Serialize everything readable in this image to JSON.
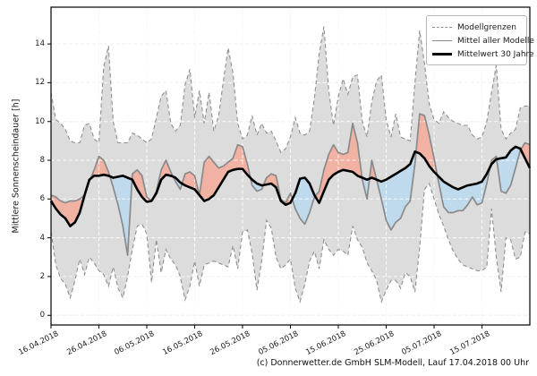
{
  "caption": "(c) Donnerwetter.de GmbH SLM-Modell, Lauf 17.04.2018 00 Uhr",
  "legend": {
    "items": [
      {
        "label": "Modellgrenzen",
        "style": "dashed-gray"
      },
      {
        "label": "Mittel aller Modelle",
        "style": "solid-gray"
      },
      {
        "label": "Mittelwert 30 Jahre",
        "style": "solid-black-thick"
      }
    ]
  },
  "colors": {
    "band_fill": "#dcdcdc",
    "band_border": "#8f8f8f",
    "above_normal_fill": "#f1b2a3",
    "below_normal_fill": "#bfdaec",
    "model_mean_line": "#8a8a8a",
    "climate_mean_line": "#000000",
    "grid_under": "#cccccc",
    "grid_over": "#ffffff",
    "axis": "#000000",
    "text": "#1a1a1a"
  },
  "chart_data": {
    "type": "area",
    "title": "",
    "xlabel": "",
    "ylabel": "Mittlere Sonnenscheindauer [h]",
    "grid": true,
    "legend_position": "top-right",
    "ylim": [
      -0.5,
      15.9
    ],
    "yticks": [
      0,
      2,
      4,
      6,
      8,
      10,
      12,
      14
    ],
    "x_unit": "days since 16.04.2018",
    "xlim_days": [
      0,
      100
    ],
    "x_tick_days": [
      0,
      10,
      20,
      30,
      40,
      50,
      60,
      70,
      80,
      90
    ],
    "x_tick_labels": [
      "16.04.2018",
      "26.04.2018",
      "06.05.2018",
      "16.05.2018",
      "26.05.2018",
      "05.06.2018",
      "15.06.2018",
      "25.06.2018",
      "05.07.2018",
      "15.07.2018"
    ],
    "series": [
      {
        "name": "Modellgrenzen (Maximum)",
        "role": "model_max",
        "values": [
          11.5,
          10.1,
          9.9,
          9.6,
          9.0,
          8.9,
          8.9,
          9.8,
          9.9,
          9.1,
          8.9,
          12.8,
          13.9,
          10.0,
          8.9,
          8.9,
          8.9,
          9.4,
          9.3,
          9.1,
          8.9,
          9.1,
          10.2,
          11.3,
          11.6,
          9.9,
          9.5,
          9.8,
          11.9,
          12.7,
          10.2,
          11.6,
          9.9,
          11.5,
          9.5,
          10.3,
          12.1,
          13.8,
          12.5,
          9.9,
          9.1,
          9.3,
          10.3,
          9.3,
          9.9,
          9.4,
          9.5,
          9.0,
          8.4,
          8.6,
          9.2,
          10.2,
          9.4,
          9.3,
          9.5,
          11.2,
          13.5,
          14.9,
          11.6,
          9.8,
          11.3,
          12.2,
          11.4,
          12.3,
          12.4,
          10.0,
          9.2,
          11.0,
          12.1,
          12.4,
          10.1,
          9.2,
          10.4,
          9.2,
          9.1,
          9.0,
          12.0,
          14.7,
          13.0,
          10.9,
          10.1,
          9.9,
          10.5,
          10.2,
          10.0,
          9.9,
          9.8,
          9.8,
          9.3,
          9.1,
          9.2,
          10.0,
          11.5,
          12.9,
          9.6,
          9.1,
          9.4,
          9.6,
          10.7,
          10.8,
          10.8
        ]
      },
      {
        "name": "Modellgrenzen (Minimum)",
        "role": "model_min",
        "values": [
          4.3,
          2.6,
          1.9,
          1.6,
          0.9,
          1.8,
          2.9,
          2.1,
          3.0,
          2.7,
          2.3,
          2.1,
          1.5,
          2.5,
          1.4,
          0.9,
          2.0,
          3.4,
          4.6,
          4.7,
          4.2,
          1.7,
          3.9,
          2.2,
          3.4,
          2.9,
          2.6,
          2.0,
          0.8,
          1.5,
          2.8,
          1.5,
          2.6,
          2.7,
          2.8,
          2.7,
          2.6,
          2.5,
          3.6,
          2.4,
          4.3,
          4.4,
          3.2,
          1.3,
          2.8,
          4.9,
          4.5,
          3.0,
          2.4,
          2.6,
          2.9,
          1.4,
          0.7,
          1.6,
          2.8,
          3.3,
          2.4,
          3.9,
          3.4,
          3.1,
          3.4,
          3.3,
          3.1,
          4.6,
          3.9,
          3.5,
          2.7,
          2.3,
          1.8,
          0.7,
          1.3,
          1.8,
          1.8,
          1.4,
          2.2,
          2.0,
          1.2,
          3.5,
          6.5,
          6.8,
          6.0,
          5.2,
          4.6,
          3.9,
          3.3,
          2.9,
          2.6,
          2.5,
          2.4,
          2.3,
          2.3,
          2.5,
          5.5,
          3.0,
          1.2,
          4.0,
          3.9,
          2.9,
          3.0,
          4.3,
          4.2
        ]
      },
      {
        "name": "Mittel aller Modelle",
        "role": "model_mean",
        "values": [
          6.2,
          6.1,
          5.9,
          5.8,
          5.9,
          5.9,
          6.0,
          6.2,
          6.9,
          7.5,
          8.2,
          8.0,
          7.4,
          6.6,
          5.7,
          4.6,
          3.1,
          7.3,
          7.5,
          7.2,
          6.1,
          5.9,
          6.4,
          7.5,
          8.0,
          7.4,
          6.9,
          6.5,
          7.3,
          7.4,
          7.2,
          6.2,
          7.9,
          8.2,
          7.9,
          7.6,
          7.7,
          7.9,
          8.1,
          8.8,
          8.7,
          7.8,
          6.7,
          6.4,
          6.5,
          7.1,
          7.3,
          7.2,
          6.0,
          5.8,
          6.3,
          5.5,
          5.0,
          4.7,
          5.3,
          6.1,
          6.4,
          7.5,
          8.3,
          8.8,
          8.4,
          8.3,
          8.4,
          9.9,
          8.9,
          7.0,
          6.0,
          8.0,
          7.0,
          6.0,
          4.9,
          4.4,
          4.8,
          5.0,
          5.6,
          5.9,
          7.8,
          10.4,
          10.3,
          9.3,
          8.1,
          6.8,
          5.6,
          5.3,
          5.3,
          5.4,
          5.4,
          5.7,
          6.1,
          5.7,
          5.8,
          6.8,
          8.0,
          8.2,
          6.4,
          6.3,
          6.7,
          7.6,
          8.5,
          8.9,
          8.8
        ]
      },
      {
        "name": "Mittelwert 30 Jahre",
        "role": "climate_mean_30y",
        "values": [
          5.9,
          5.5,
          5.2,
          5.0,
          4.6,
          4.8,
          5.3,
          6.2,
          7.0,
          7.2,
          7.2,
          7.25,
          7.2,
          7.1,
          7.15,
          7.2,
          7.1,
          7.0,
          6.5,
          6.1,
          5.85,
          5.9,
          6.3,
          7.0,
          7.25,
          7.2,
          7.1,
          6.85,
          6.7,
          6.6,
          6.5,
          6.2,
          5.9,
          6.0,
          6.2,
          6.6,
          7.0,
          7.4,
          7.5,
          7.55,
          7.55,
          7.25,
          7.0,
          6.8,
          6.7,
          6.75,
          6.8,
          6.6,
          5.9,
          5.7,
          5.8,
          6.3,
          7.05,
          7.1,
          6.8,
          6.2,
          5.8,
          6.4,
          7.0,
          7.25,
          7.4,
          7.5,
          7.45,
          7.4,
          7.2,
          7.1,
          7.0,
          7.1,
          7.0,
          6.9,
          7.0,
          7.15,
          7.3,
          7.45,
          7.6,
          7.8,
          8.45,
          8.35,
          8.1,
          7.7,
          7.4,
          7.15,
          6.9,
          6.75,
          6.6,
          6.5,
          6.6,
          6.7,
          6.75,
          6.8,
          6.9,
          7.3,
          7.8,
          8.05,
          8.1,
          8.15,
          8.5,
          8.7,
          8.6,
          8.1,
          7.6
        ]
      }
    ]
  }
}
